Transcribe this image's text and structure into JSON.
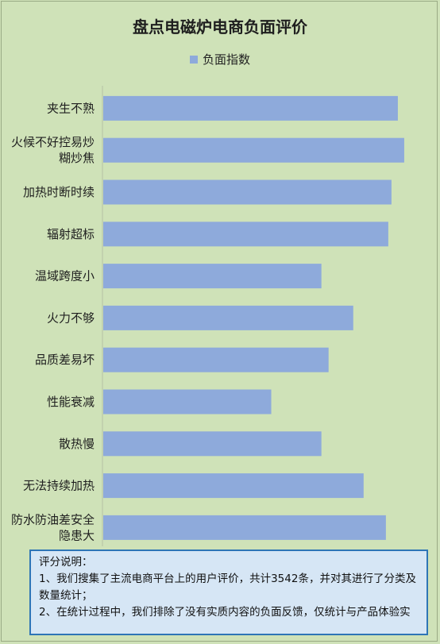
{
  "chart_data": {
    "type": "bar",
    "orientation": "horizontal",
    "title": "盘点电磁炉电商负面评价",
    "categories": [
      [
        "夹生不熟"
      ],
      [
        "火候不好控易炒",
        "糊炒焦"
      ],
      [
        "加热时断时续"
      ],
      [
        "辐射超标"
      ],
      [
        "温域跨度小"
      ],
      [
        "火力不够"
      ],
      [
        "品质差易坏"
      ],
      [
        "性能衰减"
      ],
      [
        "散热慢"
      ],
      [
        "无法持续加热"
      ],
      [
        "防水防油差安全",
        "隐患大"
      ]
    ],
    "series": [
      {
        "name": "负面指数",
        "color": "#8eaadb",
        "values": [
          370,
          378,
          362,
          358,
          274,
          314,
          283,
          211,
          274,
          327,
          355
        ]
      }
    ],
    "xlim": [
      0,
      400
    ],
    "grid": false,
    "legend": "top"
  },
  "note": {
    "heading": "评分说明：",
    "line1a": "1、我们搜集了主流电商平台上的用户评价，共计3542条，并对其进行了分类及",
    "line1b": "数量统计；",
    "line2": "2、在统计过程中，我们排除了没有实质内容的负面反馈，仅统计与产品体验实"
  }
}
